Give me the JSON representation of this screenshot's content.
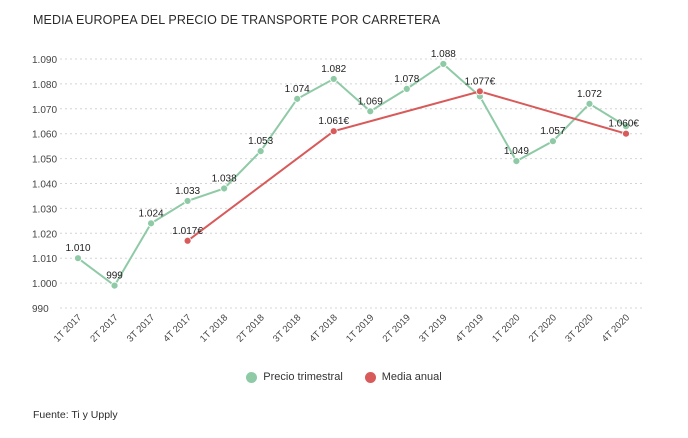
{
  "chart_data": {
    "type": "line",
    "title": "MEDIA EUROPEA DEL PRECIO DE TRANSPORTE POR CARRETERA",
    "source": "Fuente: Ti y Upply",
    "categories": [
      "1T 2017",
      "2T 2017",
      "3T 2017",
      "4T 2017",
      "1T 2018",
      "2T 2018",
      "3T 2018",
      "4T 2018",
      "1T 2019",
      "2T 2019",
      "3T 2019",
      "4T 2019",
      "1T 2020",
      "2T 2020",
      "3T 2020",
      "4T 2020"
    ],
    "y_ticks": [
      990,
      1000,
      1010,
      1020,
      1030,
      1040,
      1050,
      1060,
      1070,
      1080,
      1090
    ],
    "y_tick_labels": [
      "990",
      "1.000",
      "1.010",
      "1.020",
      "1.030",
      "1.040",
      "1.050",
      "1.060",
      "1.070",
      "1.080",
      "1.090"
    ],
    "ylim": [
      990,
      1090
    ],
    "series": [
      {
        "name": "Precio trimestral",
        "color": "#8fcaa6",
        "values": [
          1010,
          999,
          1024,
          1033,
          1038,
          1053,
          1074,
          1082,
          1069,
          1078,
          1088,
          1075,
          1049,
          1057,
          1072,
          1063
        ],
        "labels": [
          "1.010",
          "999",
          "1.024",
          "1.033",
          "1.038",
          "1.053",
          "1.074",
          "1.082",
          "1.069",
          "1.078",
          "1.088",
          "",
          "1.049",
          "1.057",
          "1.072",
          ""
        ]
      },
      {
        "name": "Media anual",
        "color": "#d85a5a",
        "points": [
          {
            "category": "4T 2017",
            "value": 1017,
            "label": "1.017€"
          },
          {
            "category": "4T 2018",
            "value": 1061,
            "label": "1.061€"
          },
          {
            "category": "4T 2019",
            "value": 1077,
            "label": "1.077€"
          },
          {
            "category": "4T 2020",
            "value": 1060,
            "label": "1.060€"
          }
        ]
      }
    ],
    "legend": [
      "Precio trimestral",
      "Media anual"
    ],
    "grid": true
  }
}
